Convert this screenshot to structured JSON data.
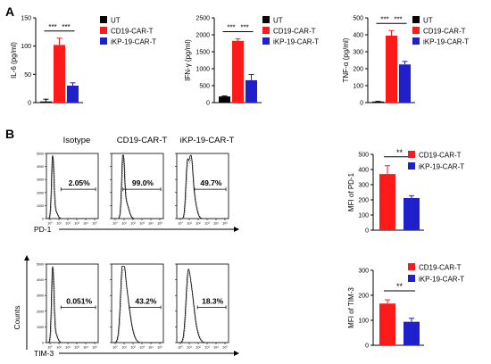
{
  "panels": {
    "a": "A",
    "b": "B"
  },
  "colors": {
    "ut": "#000000",
    "cd19": "#ff1a1a",
    "ikp": "#1f1fcc",
    "axis": "#000000"
  },
  "sig": "***",
  "sig2": "**",
  "chart_data": [
    {
      "type": "bar",
      "id": "il6",
      "ylabel": "IL-6 (pg/ml)",
      "categories": [
        "UT",
        "CD19-CAR-T",
        "iKP-19-CAR-T"
      ],
      "values": [
        2,
        102,
        30
      ],
      "errors": [
        4,
        12,
        5
      ],
      "ylim": [
        0,
        150
      ],
      "yticks": [
        "0",
        "50",
        "100",
        "150"
      ],
      "ytick_values": [
        0,
        50,
        100,
        150
      ],
      "legend": [
        "UT",
        "CD19-CAR-T",
        "iKP-19-CAR-T"
      ],
      "legend_position": "right",
      "significance": [
        "***",
        "***"
      ]
    },
    {
      "type": "bar",
      "id": "ifng",
      "ylabel": "IFN-γ (pg/ml)",
      "categories": [
        "UT",
        "CD19-CAR-T",
        "iKP-19-CAR-T"
      ],
      "values": [
        180,
        1820,
        660
      ],
      "errors": [
        15,
        60,
        170
      ],
      "ylim": [
        0,
        2500
      ],
      "yticks": [
        "0",
        "500",
        "1000",
        "1500",
        "2000",
        "2500"
      ],
      "ytick_values": [
        0,
        500,
        1000,
        1500,
        2000,
        2500
      ],
      "legend": [
        "UT",
        "CD19-CAR-T",
        "iKP-19-CAR-T"
      ],
      "legend_position": "right",
      "significance": [
        "***",
        "***"
      ]
    },
    {
      "type": "bar",
      "id": "tnfa",
      "ylabel": "TNF-α (pg/ml)",
      "categories": [
        "UT",
        "CD19-CAR-T",
        "iKP-19-CAR-T"
      ],
      "values": [
        4,
        395,
        225
      ],
      "errors": [
        3,
        30,
        18
      ],
      "ylim": [
        0,
        500
      ],
      "yticks": [
        "0",
        "100",
        "200",
        "300",
        "400",
        "500"
      ],
      "ytick_values": [
        0,
        100,
        200,
        300,
        400,
        500
      ],
      "legend": [
        "UT",
        "CD19-CAR-T",
        "iKP-19-CAR-T"
      ],
      "legend_position": "right",
      "significance": [
        "***",
        "***"
      ]
    },
    {
      "type": "bar",
      "id": "pd1",
      "ylabel": "MFI of PD-1",
      "categories": [
        "CD19-CAR-T",
        "iKP-19-CAR-T"
      ],
      "values": [
        370,
        212
      ],
      "errors": [
        55,
        15
      ],
      "ylim": [
        0,
        500
      ],
      "yticks": [
        "0",
        "100",
        "200",
        "300",
        "400",
        "500"
      ],
      "ytick_values": [
        0,
        100,
        200,
        300,
        400,
        500
      ],
      "legend": [
        "CD19-CAR-T",
        "iKP-19-CAR-T"
      ],
      "legend_position": "right",
      "significance": [
        "**"
      ]
    },
    {
      "type": "bar",
      "id": "tim3",
      "ylabel": "MFI of TIM-3",
      "categories": [
        "CD19-CAR-T",
        "iKP-19-CAR-T"
      ],
      "values": [
        167,
        94
      ],
      "errors": [
        15,
        14
      ],
      "ylim": [
        0,
        300
      ],
      "yticks": [
        "0",
        "100",
        "200",
        "300"
      ],
      "ytick_values": [
        0,
        100,
        200,
        300
      ],
      "legend": [
        "CD19-CAR-T",
        "iKP-19-CAR-T"
      ],
      "legend_position": "right",
      "significance": [
        "**"
      ]
    }
  ],
  "flow": {
    "columns": [
      "Isotype",
      "CD19-CAR-T",
      "iKP-19-CAR-T"
    ],
    "rows": [
      {
        "marker": "PD-1",
        "percentages": [
          "2.05%",
          "99.0%",
          "49.7%"
        ]
      },
      {
        "marker": "TIM-3",
        "percentages": [
          "0.051%",
          "43.2%",
          "18.3%"
        ]
      }
    ],
    "ylabel": "Counts",
    "yticks": [
      "0",
      "1000",
      "2000",
      "3000",
      "4000",
      "5000"
    ],
    "xticks": [
      "10⁰",
      "10¹",
      "10²",
      "10³",
      "10⁴",
      "10⁵"
    ]
  }
}
